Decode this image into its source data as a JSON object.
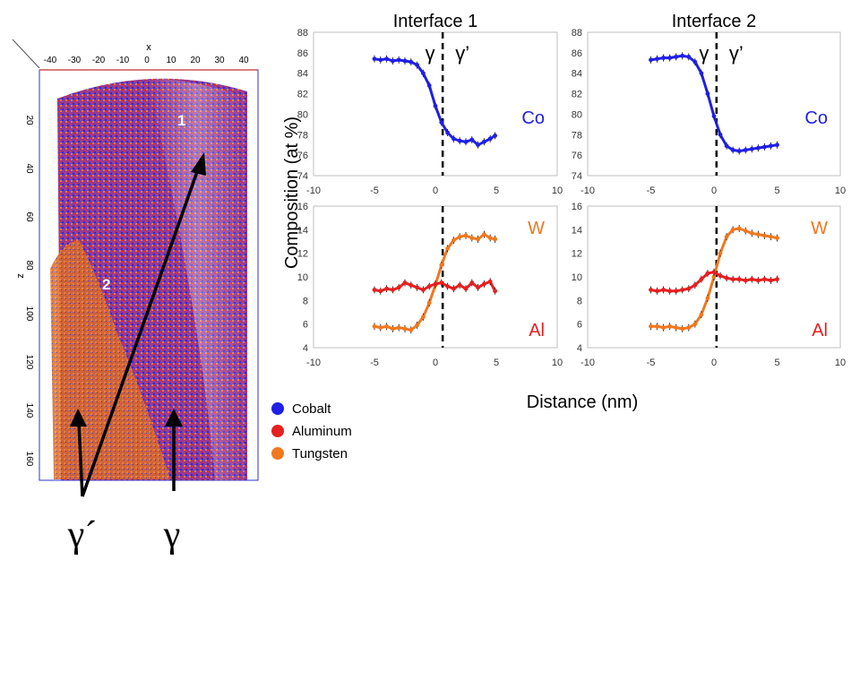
{
  "figure": {
    "ylabel": "Composition (at %)",
    "xlabel": "Distance (nm)",
    "legend": [
      {
        "label": "Cobalt",
        "color": "#1f1fe6"
      },
      {
        "label": "Aluminum",
        "color": "#e61f1f"
      },
      {
        "label": "Tungsten",
        "color": "#f07820"
      }
    ]
  },
  "atom_map": {
    "x_axis_label": "x",
    "z_axis_label": "z",
    "x_ticks": [
      "40",
      "30",
      "20",
      "10",
      "0",
      "10",
      "20",
      "30",
      "40"
    ],
    "z_ticks": [
      "20",
      "40",
      "60",
      "80",
      "100",
      "120",
      "140",
      "160"
    ],
    "region_labels": [
      "1",
      "2"
    ],
    "phase_labels": [
      "γ´",
      "γ"
    ]
  },
  "chart_data": [
    {
      "type": "line",
      "title": "Interface 1",
      "xlim": [
        -10,
        10
      ],
      "ylim": [
        74,
        88
      ],
      "xticks": [
        -10,
        -5,
        0,
        5,
        10
      ],
      "yticks": [
        74,
        76,
        78,
        80,
        82,
        84,
        86,
        88
      ],
      "element_label": "Co",
      "phase_left": "γ",
      "phase_right": "γ’",
      "interface_x": 0.6,
      "series": [
        {
          "name": "Co",
          "color": "#1f1fe6",
          "x": [
            -5,
            -4.5,
            -4,
            -3.5,
            -3,
            -2.5,
            -2,
            -1.5,
            -1,
            -0.5,
            0,
            0.5,
            1,
            1.5,
            2,
            2.5,
            3,
            3.5,
            4,
            4.5,
            4.9
          ],
          "values": [
            85.4,
            85.3,
            85.4,
            85.2,
            85.3,
            85.2,
            85.1,
            84.8,
            84.0,
            82.8,
            80.8,
            79.2,
            78.2,
            77.6,
            77.4,
            77.3,
            77.5,
            77.0,
            77.3,
            77.6,
            77.9
          ]
        }
      ]
    },
    {
      "type": "line",
      "title": "Interface 2",
      "xlim": [
        -10,
        10
      ],
      "ylim": [
        74,
        88
      ],
      "xticks": [
        -10,
        -5,
        0,
        5,
        10
      ],
      "yticks": [
        74,
        76,
        78,
        80,
        82,
        84,
        86,
        88
      ],
      "element_label": "Co",
      "phase_left": "γ",
      "phase_right": "γ’",
      "interface_x": 0.2,
      "series": [
        {
          "name": "Co",
          "color": "#1f1fe6",
          "x": [
            -5,
            -4.5,
            -4,
            -3.5,
            -3,
            -2.5,
            -2,
            -1.5,
            -1,
            -0.5,
            0,
            0.5,
            1,
            1.5,
            2,
            2.5,
            3,
            3.5,
            4,
            4.5,
            5
          ],
          "values": [
            85.3,
            85.4,
            85.5,
            85.5,
            85.6,
            85.7,
            85.6,
            85.1,
            84.0,
            82.0,
            79.8,
            78.0,
            76.9,
            76.5,
            76.4,
            76.5,
            76.6,
            76.7,
            76.8,
            76.9,
            77.0
          ]
        }
      ]
    },
    {
      "type": "line",
      "xlim": [
        -10,
        10
      ],
      "ylim": [
        4,
        16
      ],
      "xticks": [
        -10,
        -5,
        0,
        5,
        10
      ],
      "yticks": [
        4,
        6,
        8,
        10,
        12,
        14,
        16
      ],
      "element_labels": [
        {
          "text": "W",
          "color": "#f07820"
        },
        {
          "text": "Al",
          "color": "#e61f1f"
        }
      ],
      "interface_x": 0.6,
      "series": [
        {
          "name": "W",
          "color": "#f07820",
          "x": [
            -5,
            -4.5,
            -4,
            -3.5,
            -3,
            -2.5,
            -2,
            -1.5,
            -1,
            -0.5,
            0,
            0.5,
            1,
            1.5,
            2,
            2.5,
            3,
            3.5,
            4,
            4.5,
            4.9
          ],
          "values": [
            5.8,
            5.7,
            5.8,
            5.6,
            5.7,
            5.6,
            5.5,
            5.9,
            6.6,
            7.8,
            9.3,
            11.0,
            12.4,
            13.1,
            13.4,
            13.5,
            13.3,
            13.2,
            13.6,
            13.3,
            13.2
          ]
        },
        {
          "name": "Al",
          "color": "#e61f1f",
          "x": [
            -5,
            -4.5,
            -4,
            -3.5,
            -3,
            -2.5,
            -2,
            -1.5,
            -1,
            -0.5,
            0,
            0.5,
            1,
            1.5,
            2,
            2.5,
            3,
            3.5,
            4,
            4.5,
            4.9
          ],
          "values": [
            8.9,
            8.8,
            9.0,
            8.9,
            9.1,
            9.5,
            9.3,
            9.1,
            8.9,
            9.2,
            9.4,
            9.5,
            9.2,
            9.0,
            9.3,
            9.0,
            9.5,
            9.1,
            9.4,
            9.6,
            8.8
          ]
        }
      ]
    },
    {
      "type": "line",
      "xlim": [
        -10,
        10
      ],
      "ylim": [
        4,
        16
      ],
      "xticks": [
        -10,
        -5,
        0,
        5,
        10
      ],
      "yticks": [
        4,
        6,
        8,
        10,
        12,
        14,
        16
      ],
      "element_labels": [
        {
          "text": "W",
          "color": "#f07820"
        },
        {
          "text": "Al",
          "color": "#e61f1f"
        }
      ],
      "interface_x": 0.2,
      "series": [
        {
          "name": "W",
          "color": "#f07820",
          "x": [
            -5,
            -4.5,
            -4,
            -3.5,
            -3,
            -2.5,
            -2,
            -1.5,
            -1,
            -0.5,
            0,
            0.5,
            1,
            1.5,
            2,
            2.5,
            3,
            3.5,
            4,
            4.5,
            5
          ],
          "values": [
            5.8,
            5.8,
            5.7,
            5.8,
            5.7,
            5.6,
            5.7,
            6.0,
            6.8,
            8.2,
            10.0,
            12.0,
            13.4,
            14.0,
            14.1,
            13.9,
            13.7,
            13.6,
            13.5,
            13.4,
            13.3
          ]
        },
        {
          "name": "Al",
          "color": "#e61f1f",
          "x": [
            -5,
            -4.5,
            -4,
            -3.5,
            -3,
            -2.5,
            -2,
            -1.5,
            -1,
            -0.5,
            0,
            0.5,
            1,
            1.5,
            2,
            2.5,
            3,
            3.5,
            4,
            4.5,
            5
          ],
          "values": [
            8.9,
            8.8,
            8.9,
            8.8,
            8.8,
            8.9,
            9.0,
            9.3,
            9.8,
            10.3,
            10.4,
            10.1,
            9.9,
            9.8,
            9.8,
            9.7,
            9.8,
            9.7,
            9.8,
            9.7,
            9.8
          ]
        }
      ]
    }
  ]
}
